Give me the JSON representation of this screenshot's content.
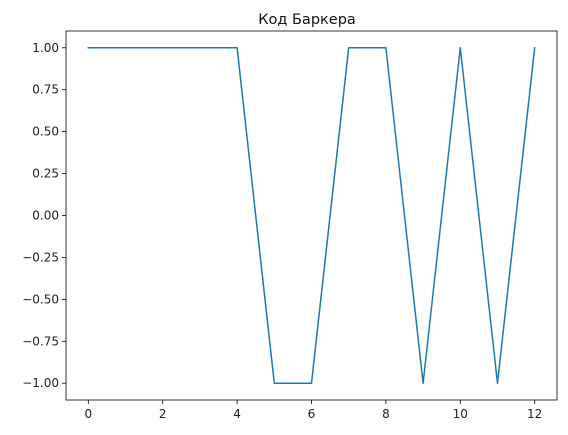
{
  "chart_data": {
    "type": "line",
    "title": "Код Баркера",
    "xlabel": "",
    "ylabel": "",
    "xlim": [
      -0.6,
      12.6
    ],
    "ylim": [
      -1.1,
      1.1
    ],
    "xticks": [
      0,
      2,
      4,
      6,
      8,
      10,
      12
    ],
    "xtick_labels": [
      "0",
      "2",
      "4",
      "6",
      "8",
      "10",
      "12"
    ],
    "yticks": [
      1.0,
      0.75,
      0.5,
      0.25,
      0.0,
      -0.25,
      -0.5,
      -0.75,
      -1.0
    ],
    "ytick_labels": [
      "1.00",
      "0.75",
      "0.50",
      "0.25",
      "0.00",
      "−0.25",
      "−0.50",
      "−0.75",
      "−1.00"
    ],
    "grid": false,
    "series": [
      {
        "x": [
          0,
          1,
          2,
          3,
          4,
          5,
          6,
          7,
          8,
          9,
          10,
          11,
          12
        ],
        "values": [
          1,
          1,
          1,
          1,
          1,
          -1,
          -1,
          1,
          1,
          -1,
          1,
          -1,
          1
        ],
        "color": "#1f77b4"
      }
    ]
  }
}
